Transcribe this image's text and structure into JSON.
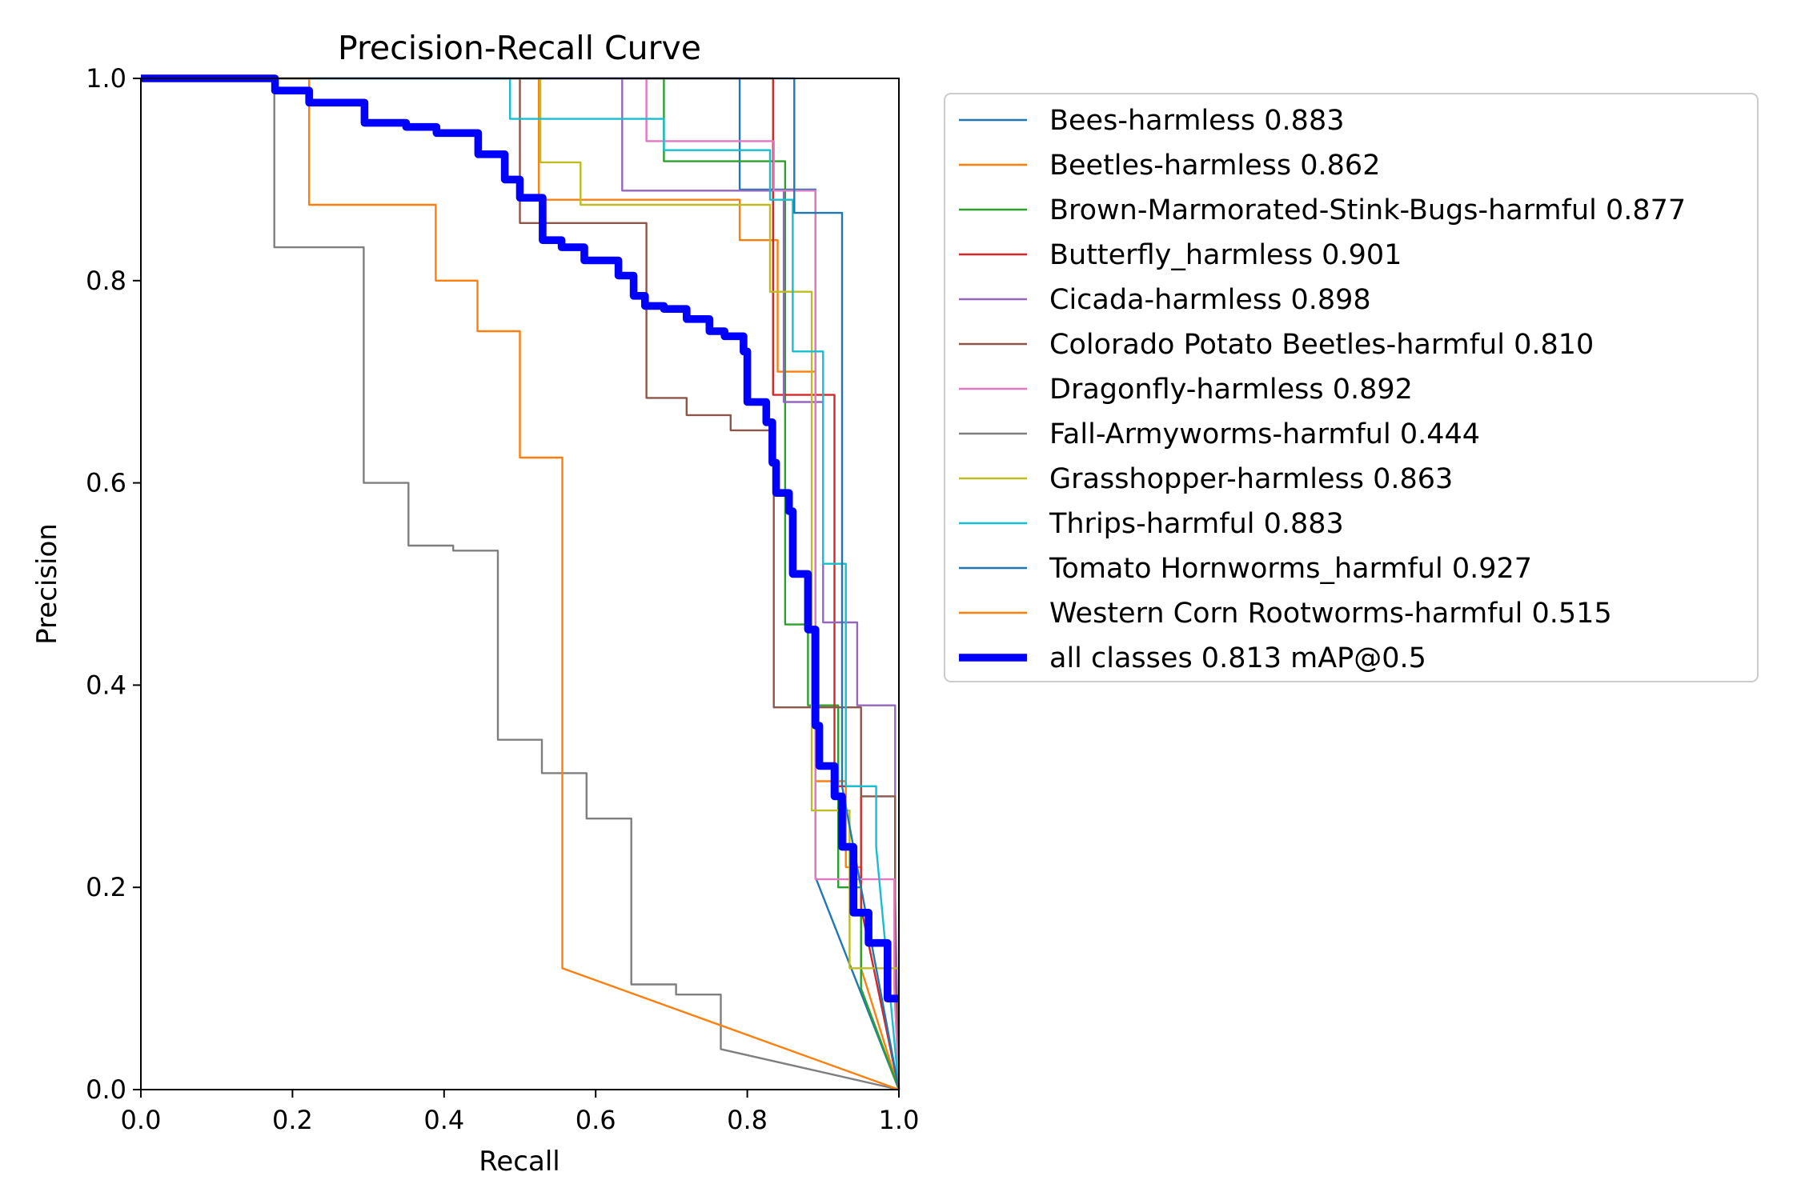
{
  "chart_data": {
    "type": "line",
    "title": "Precision-Recall Curve",
    "xlabel": "Recall",
    "ylabel": "Precision",
    "xlim": [
      0,
      1
    ],
    "ylim": [
      0,
      1
    ],
    "xticks": [
      "0.0",
      "0.2",
      "0.4",
      "0.6",
      "0.8",
      "1.0"
    ],
    "yticks": [
      "0.0",
      "0.2",
      "0.4",
      "0.6",
      "0.8",
      "1.0"
    ],
    "grid": false,
    "legend_position": "outside-right",
    "series": [
      {
        "name": "Bees-harmless 0.883",
        "color": "#1f77b4",
        "width": 1.5,
        "x": [
          0.0,
          0.79,
          0.79,
          0.79,
          0.79,
          0.82,
          0.82,
          0.84,
          0.84,
          0.89,
          0.89,
          0.89,
          1.0
        ],
        "y": [
          1.0,
          1.0,
          1.0,
          0.89,
          0.89,
          0.89,
          0.89,
          0.89,
          0.89,
          0.89,
          0.89,
          0.21,
          0.0
        ]
      },
      {
        "name": "Beetles-harmless 0.862",
        "color": "#ff7f0e",
        "width": 1.5,
        "x": [
          0.0,
          0.525,
          0.525,
          0.58,
          0.58,
          0.79,
          0.79,
          0.84,
          0.84,
          0.89,
          0.89,
          0.9,
          0.9,
          0.93,
          0.93,
          0.95,
          0.95,
          1.0
        ],
        "y": [
          1.0,
          1.0,
          0.88,
          0.88,
          0.88,
          0.88,
          0.84,
          0.84,
          0.71,
          0.71,
          0.305,
          0.305,
          0.305,
          0.305,
          0.22,
          0.22,
          0.12,
          0.0
        ]
      },
      {
        "name": "Brown-Marmorated-Stink-Bugs-harmful 0.877",
        "color": "#2ca02c",
        "width": 1.5,
        "x": [
          0.0,
          0.69,
          0.69,
          0.85,
          0.85,
          0.88,
          0.88,
          0.92,
          0.92,
          0.95,
          0.95,
          1.0
        ],
        "y": [
          1.0,
          1.0,
          0.918,
          0.918,
          0.46,
          0.46,
          0.38,
          0.38,
          0.2,
          0.2,
          0.1,
          0.0
        ]
      },
      {
        "name": "Butterfly_harmless 0.901",
        "color": "#d62728",
        "width": 1.5,
        "x": [
          0.0,
          0.834,
          0.834,
          0.915,
          0.915,
          0.95,
          0.95,
          1.0
        ],
        "y": [
          1.0,
          1.0,
          0.687,
          0.687,
          0.3,
          0.3,
          0.18,
          0.0
        ]
      },
      {
        "name": "Cicada-harmless 0.898",
        "color": "#9467bd",
        "width": 1.5,
        "x": [
          0.0,
          0.635,
          0.635,
          0.848,
          0.848,
          0.9,
          0.9,
          0.945,
          0.945,
          0.995,
          0.995,
          1.0
        ],
        "y": [
          1.0,
          1.0,
          0.889,
          0.889,
          0.68,
          0.68,
          0.462,
          0.462,
          0.38,
          0.38,
          0.19,
          0.0
        ]
      },
      {
        "name": "Colorado Potato Beetles-harmful 0.810",
        "color": "#8c564b",
        "width": 1.5,
        "x": [
          0.0,
          0.5,
          0.5,
          0.667,
          0.667,
          0.72,
          0.72,
          0.778,
          0.778,
          0.833,
          0.833,
          0.835,
          0.835,
          0.9,
          0.9,
          0.95,
          0.95,
          0.995,
          0.995,
          1.0
        ],
        "y": [
          1.0,
          1.0,
          0.857,
          0.857,
          0.684,
          0.684,
          0.667,
          0.667,
          0.652,
          0.652,
          0.652,
          0.652,
          0.378,
          0.378,
          0.378,
          0.378,
          0.29,
          0.29,
          0.12,
          0.0
        ]
      },
      {
        "name": "Dragonfly-harmless 0.892",
        "color": "#e377c2",
        "width": 1.5,
        "x": [
          0.0,
          0.667,
          0.667,
          0.7,
          0.7,
          0.835,
          0.835,
          0.889,
          0.889,
          0.89,
          0.89,
          0.994,
          0.994,
          1.0
        ],
        "y": [
          1.0,
          1.0,
          0.938,
          0.938,
          0.938,
          0.938,
          0.889,
          0.889,
          0.889,
          0.889,
          0.208,
          0.208,
          0.1,
          0.0
        ]
      },
      {
        "name": "Fall-Armyworms-harmful 0.444",
        "color": "#7f7f7f",
        "width": 1.5,
        "x": [
          0.0,
          0.176,
          0.176,
          0.294,
          0.294,
          0.353,
          0.353,
          0.412,
          0.412,
          0.471,
          0.471,
          0.529,
          0.529,
          0.588,
          0.588,
          0.647,
          0.647,
          0.706,
          0.706,
          0.765,
          0.765,
          1.0
        ],
        "y": [
          1.0,
          1.0,
          0.833,
          0.833,
          0.6,
          0.6,
          0.538,
          0.538,
          0.533,
          0.533,
          0.346,
          0.346,
          0.313,
          0.313,
          0.268,
          0.268,
          0.104,
          0.104,
          0.094,
          0.094,
          0.04,
          0.0
        ]
      },
      {
        "name": "Grasshopper-harmless 0.863",
        "color": "#bcbd22",
        "width": 1.5,
        "x": [
          0.0,
          0.527,
          0.527,
          0.58,
          0.58,
          0.83,
          0.83,
          0.885,
          0.885,
          0.935,
          0.935,
          1.0
        ],
        "y": [
          1.0,
          1.0,
          0.917,
          0.917,
          0.875,
          0.875,
          0.789,
          0.789,
          0.276,
          0.276,
          0.12,
          0.12
        ]
      },
      {
        "name": "Thrips-harmful 0.883",
        "color": "#17becf",
        "width": 1.5,
        "x": [
          0.0,
          0.487,
          0.487,
          0.69,
          0.69,
          0.83,
          0.83,
          0.86,
          0.86,
          0.9,
          0.9,
          0.93,
          0.93,
          0.97,
          0.97,
          1.0
        ],
        "y": [
          1.0,
          1.0,
          0.96,
          0.96,
          0.929,
          0.929,
          0.88,
          0.88,
          0.73,
          0.73,
          0.52,
          0.52,
          0.3,
          0.3,
          0.24,
          0.0
        ]
      },
      {
        "name": "Tomato Hornworms_harmful 0.927",
        "color": "#1f77b4",
        "width": 1.5,
        "x": [
          0.0,
          0.862,
          0.862,
          0.925,
          0.925,
          1.0
        ],
        "y": [
          1.0,
          1.0,
          0.867,
          0.867,
          0.3,
          0.0
        ]
      },
      {
        "name": "Western Corn Rootworms-harmful 0.515",
        "color": "#ff7f0e",
        "width": 1.5,
        "x": [
          0.0,
          0.222,
          0.222,
          0.389,
          0.389,
          0.444,
          0.444,
          0.5,
          0.5,
          0.556,
          0.556,
          1.0
        ],
        "y": [
          1.0,
          1.0,
          0.875,
          0.875,
          0.8,
          0.8,
          0.75,
          0.75,
          0.625,
          0.625,
          0.12,
          0.0
        ]
      },
      {
        "name": "all classes 0.813 mAP@0.5",
        "color": "#0000ff",
        "width": 6,
        "x": [
          0.0,
          0.177,
          0.177,
          0.222,
          0.222,
          0.295,
          0.295,
          0.35,
          0.35,
          0.39,
          0.39,
          0.445,
          0.445,
          0.48,
          0.48,
          0.5,
          0.5,
          0.53,
          0.53,
          0.555,
          0.555,
          0.585,
          0.585,
          0.63,
          0.63,
          0.65,
          0.65,
          0.665,
          0.665,
          0.69,
          0.69,
          0.72,
          0.72,
          0.75,
          0.75,
          0.77,
          0.77,
          0.795,
          0.795,
          0.8,
          0.8,
          0.825,
          0.825,
          0.833,
          0.833,
          0.838,
          0.838,
          0.855,
          0.855,
          0.86,
          0.86,
          0.88,
          0.88,
          0.89,
          0.89,
          0.895,
          0.895,
          0.915,
          0.915,
          0.925,
          0.925,
          0.94,
          0.94,
          0.96,
          0.96,
          0.985,
          0.985,
          1.0
        ],
        "y": [
          1.0,
          1.0,
          0.988,
          0.988,
          0.976,
          0.976,
          0.956,
          0.956,
          0.952,
          0.952,
          0.946,
          0.946,
          0.925,
          0.925,
          0.9,
          0.9,
          0.882,
          0.882,
          0.84,
          0.84,
          0.833,
          0.833,
          0.82,
          0.82,
          0.805,
          0.805,
          0.785,
          0.785,
          0.775,
          0.775,
          0.772,
          0.772,
          0.762,
          0.762,
          0.75,
          0.75,
          0.745,
          0.745,
          0.73,
          0.73,
          0.68,
          0.68,
          0.66,
          0.66,
          0.62,
          0.62,
          0.59,
          0.59,
          0.572,
          0.572,
          0.51,
          0.51,
          0.455,
          0.455,
          0.36,
          0.36,
          0.32,
          0.32,
          0.29,
          0.29,
          0.24,
          0.24,
          0.175,
          0.175,
          0.145,
          0.145,
          0.09,
          0.09
        ]
      }
    ]
  }
}
